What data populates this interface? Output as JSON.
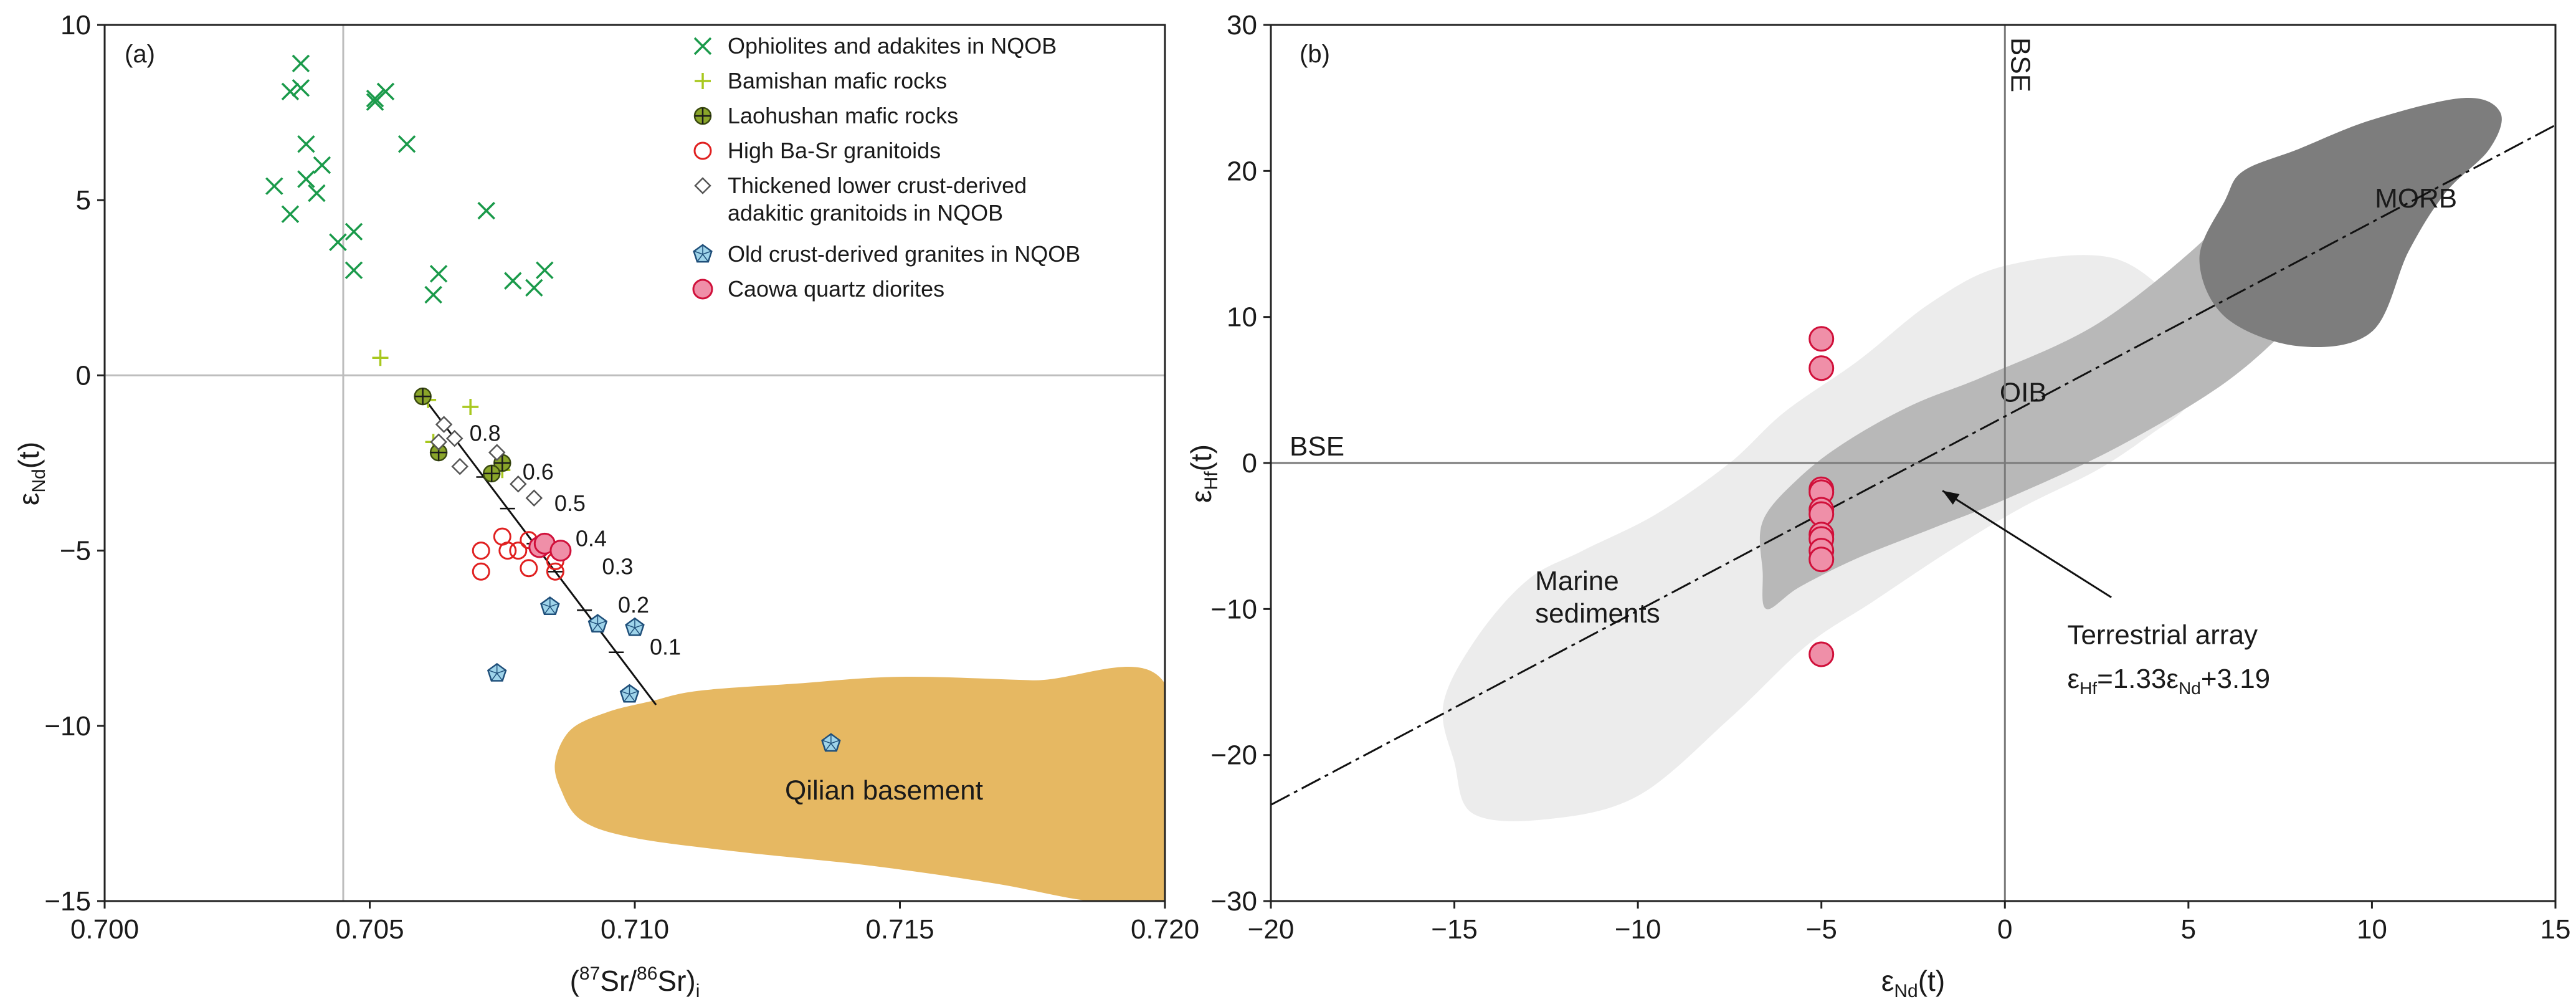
{
  "chart_data": [
    {
      "type": "scatter",
      "panel_label": "(a)",
      "xlabel": {
        "open": "(",
        "sup1": "87",
        "mid": "Sr/",
        "sup2": "86",
        "close": "Sr)",
        "sub": "i"
      },
      "ylabel": {
        "base": "ε",
        "sub": "Nd",
        "tail": "(t)"
      },
      "xlim": [
        0.7,
        0.72
      ],
      "ylim": [
        -15,
        10
      ],
      "x_ticks": [
        0.7,
        0.705,
        0.71,
        0.715,
        0.72
      ],
      "x_tick_labels": [
        "0.700",
        "0.705",
        "0.710",
        "0.715",
        "0.720"
      ],
      "y_ticks": [
        10,
        5,
        0,
        -5,
        -10,
        -15
      ],
      "y_tick_labels": [
        "10",
        "5",
        "0",
        "−5",
        "−10",
        "−15"
      ],
      "reference_lines": {
        "x": 0.7045,
        "y": 0
      },
      "legend": [
        {
          "label": "Ophiolites and adakites in NQOB",
          "marker": "x",
          "color": "#1a9a4a"
        },
        {
          "label": "Bamishan mafic rocks",
          "marker": "plus",
          "color": "#a8c81e"
        },
        {
          "label": "Laohushan mafic rocks",
          "marker": "circle-cross",
          "color": "#8aa52a"
        },
        {
          "label": "High Ba-Sr granitoids",
          "marker": "open-circle",
          "color": "#e02020"
        },
        {
          "label": "Thickened lower crust-derived",
          "label2": "adakitic granitoids in NQOB",
          "marker": "diamond",
          "color": "#555555"
        },
        {
          "label": "Old crust-derived granites in NQOB",
          "marker": "pentagon",
          "color": "#1f4f7a"
        },
        {
          "label": "Caowa quartz diorites",
          "marker": "filled-circle",
          "color": "#ef8fa8"
        }
      ],
      "series": [
        {
          "name": "Ophiolites and adakites in NQOB",
          "marker": "x",
          "points": [
            [
              0.7037,
              8.9
            ],
            [
              0.7035,
              8.1
            ],
            [
              0.7037,
              8.2
            ],
            [
              0.7051,
              7.9
            ],
            [
              0.7053,
              8.1
            ],
            [
              0.7051,
              7.8
            ],
            [
              0.7038,
              6.6
            ],
            [
              0.7057,
              6.6
            ],
            [
              0.7041,
              6.0
            ],
            [
              0.7038,
              5.6
            ],
            [
              0.7032,
              5.4
            ],
            [
              0.704,
              5.2
            ],
            [
              0.7035,
              4.6
            ],
            [
              0.7072,
              4.7
            ],
            [
              0.7047,
              4.1
            ],
            [
              0.7044,
              3.8
            ],
            [
              0.7047,
              3.0
            ],
            [
              0.7063,
              2.9
            ],
            [
              0.7077,
              2.7
            ],
            [
              0.7083,
              3.0
            ],
            [
              0.7081,
              2.5
            ],
            [
              0.7062,
              2.3
            ]
          ]
        },
        {
          "name": "Bamishan mafic rocks",
          "marker": "plus",
          "points": [
            [
              0.7052,
              0.5
            ],
            [
              0.7061,
              -0.7
            ],
            [
              0.7069,
              -0.9
            ],
            [
              0.7062,
              -1.9
            ],
            [
              0.7075,
              -2.7
            ]
          ]
        },
        {
          "name": "Laohushan mafic rocks",
          "marker": "circle-cross",
          "points": [
            [
              0.706,
              -0.6
            ],
            [
              0.7063,
              -2.2
            ],
            [
              0.7075,
              -2.5
            ],
            [
              0.7073,
              -2.8
            ]
          ]
        },
        {
          "name": "High Ba-Sr granitoids",
          "marker": "open-circle",
          "points": [
            [
              0.7071,
              -5.0
            ],
            [
              0.7075,
              -4.6
            ],
            [
              0.7076,
              -5.0
            ],
            [
              0.7078,
              -5.0
            ],
            [
              0.708,
              -4.7
            ],
            [
              0.7071,
              -5.6
            ],
            [
              0.708,
              -5.5
            ],
            [
              0.7085,
              -5.3
            ],
            [
              0.7085,
              -5.6
            ]
          ]
        },
        {
          "name": "Thickened lower crust-derived adakitic granitoids in NQOB",
          "marker": "diamond",
          "points": [
            [
              0.7064,
              -1.4
            ],
            [
              0.7063,
              -1.9
            ],
            [
              0.7066,
              -1.8
            ],
            [
              0.7067,
              -2.6
            ],
            [
              0.7074,
              -2.2
            ],
            [
              0.7078,
              -3.1
            ],
            [
              0.7081,
              -3.5
            ]
          ]
        },
        {
          "name": "Old crust-derived granites in NQOB",
          "marker": "pentagon",
          "points": [
            [
              0.7084,
              -6.6
            ],
            [
              0.7093,
              -7.1
            ],
            [
              0.71,
              -7.2
            ],
            [
              0.7074,
              -8.5
            ],
            [
              0.7099,
              -9.1
            ],
            [
              0.7137,
              -10.5
            ]
          ]
        },
        {
          "name": "Caowa quartz diorites",
          "marker": "filled-circle",
          "points": [
            [
              0.7082,
              -4.9
            ],
            [
              0.7083,
              -4.8
            ],
            [
              0.7086,
              -5.0
            ]
          ]
        }
      ],
      "mixing_line": {
        "from": [
          0.706,
          -0.6
        ],
        "to": [
          0.7104,
          -9.4
        ],
        "labels": [
          {
            "text": "0.8",
            "at": [
              0.7066,
              -1.8
            ]
          },
          {
            "text": "0.6",
            "at": [
              0.7076,
              -2.9
            ]
          },
          {
            "text": "0.5",
            "at": [
              0.7082,
              -3.8
            ]
          },
          {
            "text": "0.4",
            "at": [
              0.7086,
              -4.8
            ]
          },
          {
            "text": "0.3",
            "at": [
              0.7091,
              -5.6
            ]
          },
          {
            "text": "0.2",
            "at": [
              0.7094,
              -6.7
            ]
          },
          {
            "text": "0.1",
            "at": [
              0.71,
              -7.9
            ]
          }
        ]
      },
      "regions": [
        {
          "name": "Qilian basement",
          "label": "Qilian basement",
          "color": "#e6b862",
          "label_at": [
            0.7147,
            -12.1
          ],
          "boundary": [
            [
              0.7103,
              -9.3
            ],
            [
              0.7112,
              -9.0
            ],
            [
              0.713,
              -8.8
            ],
            [
              0.715,
              -8.6
            ],
            [
              0.7175,
              -8.7
            ],
            [
              0.72,
              -8.8
            ],
            [
              0.72,
              -15.0
            ],
            [
              0.7186,
              -15.0
            ],
            [
              0.7168,
              -14.5
            ],
            [
              0.7145,
              -14.0
            ],
            [
              0.712,
              -13.6
            ],
            [
              0.71,
              -13.2
            ],
            [
              0.709,
              -12.7
            ],
            [
              0.7086,
              -11.8
            ],
            [
              0.7085,
              -11.0
            ],
            [
              0.7088,
              -10.1
            ],
            [
              0.7095,
              -9.6
            ]
          ]
        }
      ]
    },
    {
      "type": "scatter",
      "panel_label": "(b)",
      "xlabel": {
        "base": "ε",
        "sub": "Nd",
        "tail": "(t)"
      },
      "ylabel": {
        "base": "ε",
        "sub": "Hf",
        "tail": "(t)"
      },
      "xlim": [
        -20,
        15
      ],
      "ylim": [
        -30,
        30
      ],
      "x_ticks": [
        -20,
        -15,
        -10,
        -5,
        0,
        5,
        10,
        15
      ],
      "x_tick_labels": [
        "−20",
        "−15",
        "−10",
        "−5",
        "0",
        "5",
        "10",
        "15"
      ],
      "y_ticks": [
        30,
        20,
        10,
        0,
        -10,
        -20,
        -30
      ],
      "y_tick_labels": [
        "30",
        "20",
        "10",
        "0",
        "−10",
        "−20",
        "−30"
      ],
      "reference_lines": {
        "x": 0,
        "y": 0,
        "x_label": "BSE",
        "y_label": "BSE"
      },
      "terrestrial_array": {
        "slope": 1.33,
        "intercept": 3.19,
        "x_range": [
          -20,
          15
        ],
        "label": "Terrestrial array",
        "eq": {
          "base1": "ε",
          "sub1": "Hf",
          "mid": "=1.33ε",
          "sub2": "Nd",
          "tail": "+3.19"
        },
        "arrow_tail": [
          2.9,
          -9.2
        ],
        "arrow_head": [
          -1.7,
          -1.9
        ],
        "label_at": [
          1.7,
          -12.4
        ],
        "eq_at": [
          1.7,
          -15.4
        ]
      },
      "series": [
        {
          "name": "Caowa quartz diorites",
          "marker": "filled-circle",
          "color": "#ef8fa8",
          "points": [
            [
              -5.0,
              8.5
            ],
            [
              -5.0,
              6.5
            ],
            [
              -5.0,
              -1.8
            ],
            [
              -5.0,
              -2.0
            ],
            [
              -5.0,
              -3.2
            ],
            [
              -5.0,
              -3.5
            ],
            [
              -5.0,
              -4.9
            ],
            [
              -5.0,
              -5.2
            ],
            [
              -5.0,
              -6.0
            ],
            [
              -5.0,
              -6.6
            ],
            [
              -5.0,
              -13.1
            ]
          ]
        }
      ],
      "regions": [
        {
          "name": "Marine sediments",
          "label": "Marine",
          "label2": "sediments",
          "color": "#ececec",
          "label_at": [
            -12.8,
            -8.7
          ],
          "boundary": [
            [
              -15.0,
              -20.5
            ],
            [
              -14.5,
              -24.0
            ],
            [
              -12.5,
              -24.4
            ],
            [
              -10.0,
              -22.8
            ],
            [
              -7.5,
              -17.5
            ],
            [
              -5.4,
              -12.5
            ],
            [
              -3.6,
              -9.5
            ],
            [
              -1.5,
              -6.0
            ],
            [
              0.5,
              -3.0
            ],
            [
              2.5,
              -0.5
            ],
            [
              4.0,
              2.0
            ],
            [
              5.0,
              4.0
            ],
            [
              5.5,
              7.0
            ],
            [
              5.0,
              10.0
            ],
            [
              3.0,
              14.0
            ],
            [
              0.0,
              13.5
            ],
            [
              -2.0,
              11.0
            ],
            [
              -4.0,
              7.0
            ],
            [
              -6.0,
              3.5
            ],
            [
              -7.5,
              0.0
            ],
            [
              -9.5,
              -3.5
            ],
            [
              -11.5,
              -6.0
            ],
            [
              -13.0,
              -8.0
            ],
            [
              -14.4,
              -12.0
            ],
            [
              -15.3,
              -16.5
            ]
          ]
        },
        {
          "name": "OIB",
          "label": "OIB",
          "color": "#b8b8b8",
          "label_at": [
            0.5,
            4.2
          ],
          "boundary": [
            [
              -6.5,
              -10.0
            ],
            [
              -5.6,
              -8.5
            ],
            [
              -4.0,
              -6.5
            ],
            [
              -2.0,
              -4.5
            ],
            [
              0.0,
              -2.5
            ],
            [
              3.0,
              1.0
            ],
            [
              6.0,
              5.5
            ],
            [
              8.0,
              10.0
            ],
            [
              8.5,
              12.0
            ],
            [
              7.0,
              15.5
            ],
            [
              6.0,
              17.5
            ],
            [
              5.3,
              15.0
            ],
            [
              2.5,
              9.5
            ],
            [
              -0.5,
              6.0
            ],
            [
              -2.5,
              4.0
            ],
            [
              -4.3,
              1.5
            ],
            [
              -5.6,
              -1.0
            ],
            [
              -6.6,
              -4.0
            ],
            [
              -6.6,
              -7.5
            ]
          ]
        },
        {
          "name": "MORB",
          "label": "MORB",
          "color": "#7d7d7d",
          "label_at": [
            11.2,
            17.5
          ],
          "boundary": [
            [
              5.3,
              14.0
            ],
            [
              6.0,
              18.0
            ],
            [
              6.5,
              20.0
            ],
            [
              8.0,
              21.5
            ],
            [
              10.0,
              23.5
            ],
            [
              12.5,
              25.0
            ],
            [
              13.5,
              24.0
            ],
            [
              13.2,
              21.5
            ],
            [
              12.0,
              18.5
            ],
            [
              11.0,
              14.5
            ],
            [
              10.0,
              9.0
            ],
            [
              8.0,
              8.0
            ],
            [
              6.0,
              10.0
            ]
          ]
        }
      ]
    }
  ]
}
